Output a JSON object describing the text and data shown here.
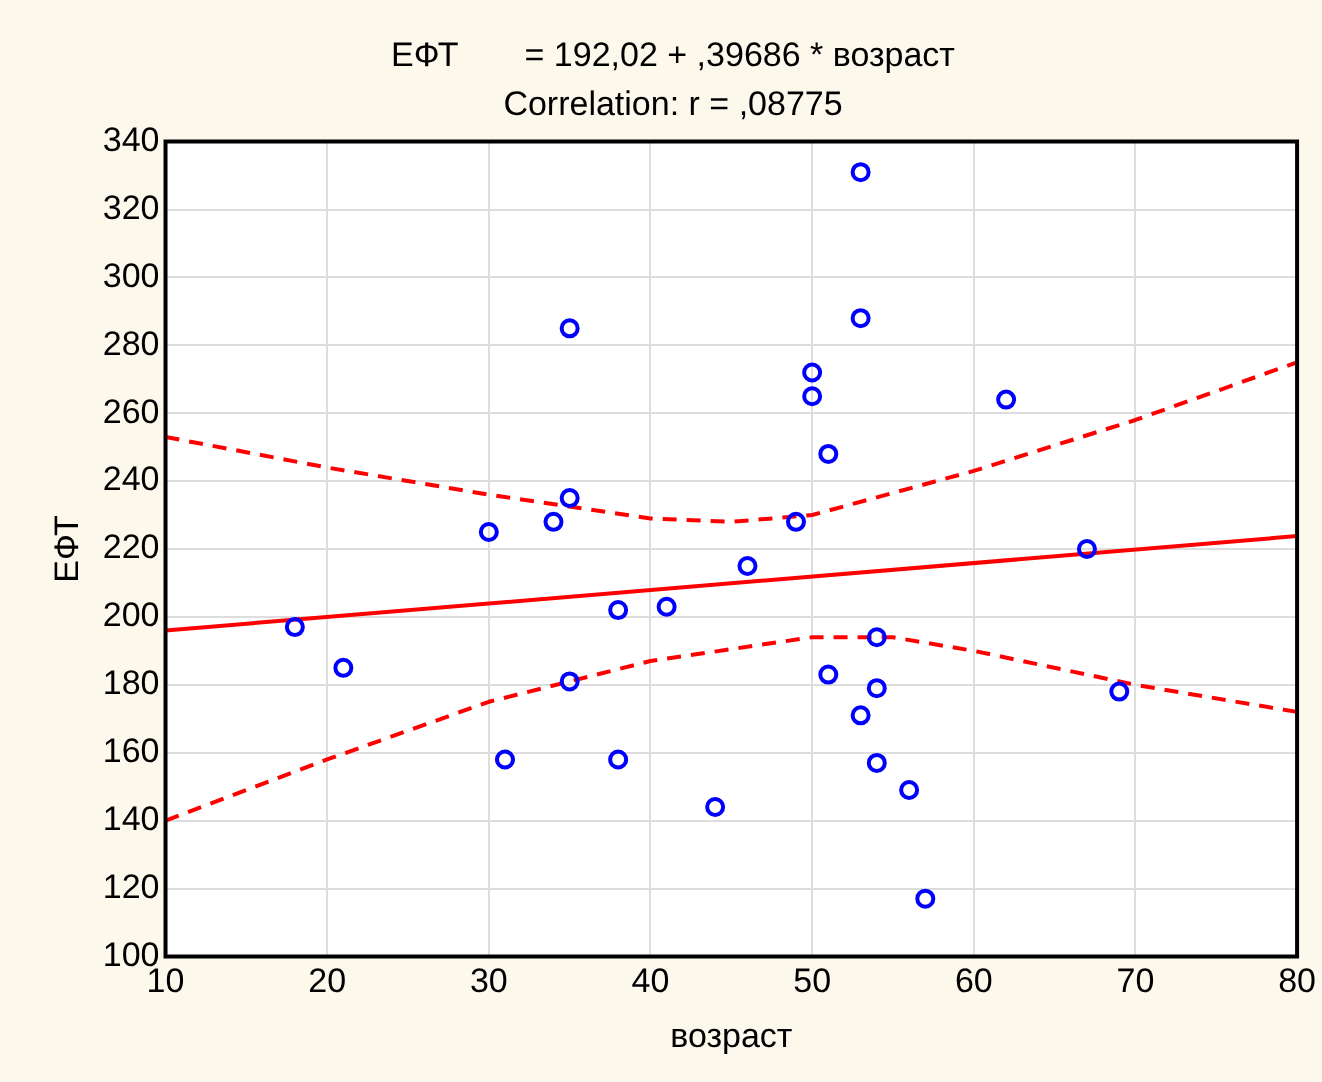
{
  "chart_data": {
    "type": "scatter",
    "title": "ЕФТ       = 192,02 + ,39686 * возраст",
    "subtitle": "Correlation: r = ,08775",
    "xlabel": "возраст",
    "ylabel": "ЕФТ",
    "xlim": [
      10,
      80
    ],
    "xticks": [
      10,
      20,
      30,
      40,
      50,
      60,
      70,
      80
    ],
    "ylim": [
      100,
      340
    ],
    "yticks": [
      100,
      120,
      140,
      160,
      180,
      200,
      220,
      240,
      260,
      280,
      300,
      320,
      340
    ],
    "grid": true,
    "legend": false,
    "series": [
      {
        "type": "scatter",
        "color": "#0000ff",
        "marker": "circle",
        "x": [
          18,
          21,
          30,
          31,
          34,
          35,
          35,
          35,
          38,
          38,
          41,
          44,
          46,
          49,
          50,
          50,
          51,
          51,
          53,
          53,
          53,
          54,
          54,
          54,
          56,
          57,
          62,
          67,
          69
        ],
        "values": [
          197,
          185,
          225,
          158,
          228,
          235,
          285,
          181,
          202,
          158,
          203,
          144,
          215,
          228,
          272,
          265,
          248,
          183,
          331,
          288,
          171,
          194,
          179,
          157,
          149,
          117,
          264,
          220,
          178
        ]
      },
      {
        "type": "line",
        "color": "#ff0000",
        "marker": "none",
        "line_style": "solid",
        "x": [
          10,
          80
        ],
        "values": [
          196,
          223.8
        ]
      },
      {
        "type": "line",
        "color": "#ff0000",
        "marker": "none",
        "line_style": "dashed",
        "x": [
          10,
          20,
          30,
          40,
          45,
          50,
          60,
          70,
          80
        ],
        "values": [
          253,
          244,
          236,
          229,
          228,
          230,
          243,
          258,
          275
        ]
      },
      {
        "type": "line",
        "color": "#ff0000",
        "marker": "none",
        "line_style": "dashed",
        "x": [
          10,
          20,
          30,
          40,
          50,
          55,
          60,
          70,
          80
        ],
        "values": [
          140,
          158,
          175,
          187,
          194,
          194,
          190,
          180,
          172
        ]
      }
    ]
  }
}
